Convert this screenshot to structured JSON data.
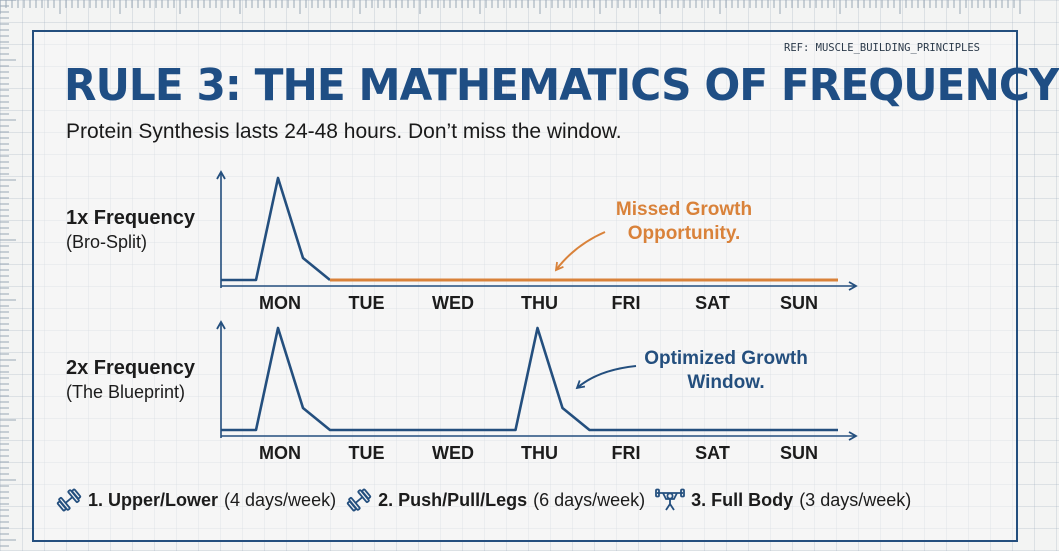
{
  "header": {
    "ref": "REF: MUSCLE_BUILDING_PRINCIPLES",
    "title": "RULE 3: THE MATHEMATICS OF FREQUENCY",
    "subtitle": "Protein Synthesis lasts 24-48 hours. Don’t miss the window."
  },
  "colors": {
    "primary": "#244f7e",
    "accent": "#d9823a",
    "text": "#1c1c1c"
  },
  "chart_data": [
    {
      "type": "line",
      "label_main": "1x Frequency",
      "label_sub": "(Bro-Split)",
      "categories": [
        "MON",
        "TUE",
        "WED",
        "THU",
        "FRI",
        "SAT",
        "SUN"
      ],
      "peaks": [
        "MON"
      ],
      "missed_from": "TUE",
      "annotation": {
        "lines": [
          "Missed Growth",
          "Opportunity."
        ],
        "color": "accent"
      }
    },
    {
      "type": "line",
      "label_main": "2x Frequency",
      "label_sub": "(The Blueprint)",
      "categories": [
        "MON",
        "TUE",
        "WED",
        "THU",
        "FRI",
        "SAT",
        "SUN"
      ],
      "peaks": [
        "MON",
        "THU"
      ],
      "annotation": {
        "lines": [
          "Optimized Growth",
          "Window."
        ],
        "color": "primary"
      }
    }
  ],
  "splits": [
    {
      "icon": "dumbbell-icon",
      "name": "1. Upper/Lower",
      "detail": "(4 days/week)"
    },
    {
      "icon": "dumbbell-icon",
      "name": "2. Push/Pull/Legs",
      "detail": "(6 days/week)"
    },
    {
      "icon": "lifter-icon",
      "name": "3. Full Body",
      "detail": "(3 days/week)"
    }
  ]
}
